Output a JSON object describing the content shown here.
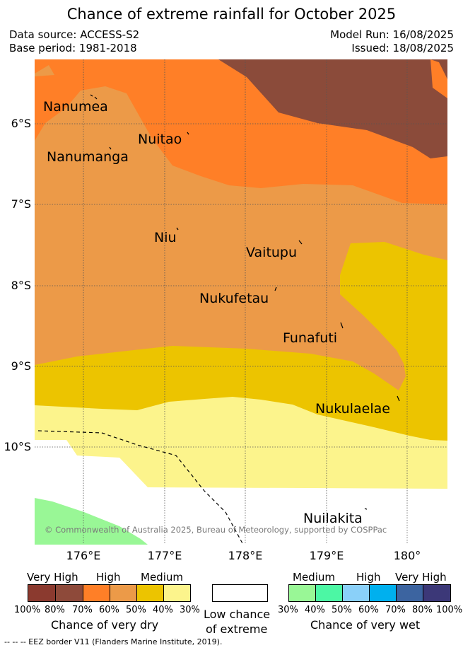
{
  "title": "Chance of extreme rainfall for October 2025",
  "header": {
    "data_source": "Data source: ACCESS-S2",
    "base_period": "Base period: 1981-2018",
    "model_run": "Model Run: 16/08/2025",
    "issued": "Issued: 18/08/2025"
  },
  "map": {
    "lat_labels": [
      "6°S",
      "7°S",
      "8°S",
      "9°S",
      "10°S"
    ],
    "lon_labels": [
      "176°E",
      "177°E",
      "178°E",
      "179°E",
      "180°"
    ],
    "islands": [
      {
        "name": "Nanumea"
      },
      {
        "name": "Nuitao"
      },
      {
        "name": "Nanumanga"
      },
      {
        "name": "Niu"
      },
      {
        "name": "Vaitupu"
      },
      {
        "name": "Nukufetau"
      },
      {
        "name": "Funafuti"
      },
      {
        "name": "Nukulaelae"
      },
      {
        "name": "Nuilakita"
      }
    ],
    "credit": "© Commonwealth of Australia 2025, Bureau of Meteorology, supported by COSPPac"
  },
  "legend": {
    "dry": {
      "categories": [
        "Very High",
        "High",
        "Medium"
      ],
      "percentages": [
        "100%",
        "80%",
        "70%",
        "60%",
        "50%",
        "40%",
        "30%"
      ],
      "colors": [
        "#8b3a2f",
        "#8e4a3a",
        "#ff7f27",
        "#ec9a48",
        "#ecc400",
        "#fcf48c"
      ],
      "label": "Chance of very dry"
    },
    "low": {
      "label_line1": "Low chance",
      "label_line2": "of extreme",
      "color": "#ffffff"
    },
    "wet": {
      "categories": [
        "Medium",
        "High",
        "Very High"
      ],
      "percentages": [
        "30%",
        "40%",
        "50%",
        "60%",
        "70%",
        "80%",
        "100%"
      ],
      "colors": [
        "#99f796",
        "#4cf7a4",
        "#8ad0f9",
        "#00b0ee",
        "#3c64a0",
        "#3c3878"
      ],
      "label": "Chance of very wet"
    }
  },
  "footer": {
    "eez_legend": "--  --  -- EEZ border V11 (Flanders Marine Institute, 2019)."
  }
}
